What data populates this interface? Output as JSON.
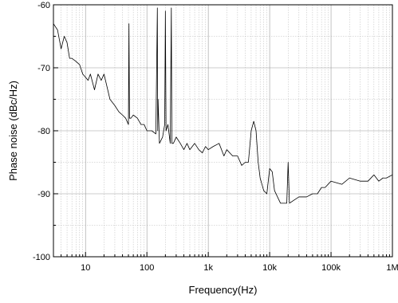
{
  "chart_data": {
    "type": "line",
    "title": "",
    "xlabel": "Frequency(Hz)",
    "ylabel": "Phase noise (dBc/Hz)",
    "x_scale": "log",
    "xlim": [
      3,
      1000000
    ],
    "ylim": [
      -100,
      -60
    ],
    "x_ticks": [
      {
        "value": 10,
        "label": "10"
      },
      {
        "value": 100,
        "label": "100"
      },
      {
        "value": 1000,
        "label": "1k"
      },
      {
        "value": 10000,
        "label": "10k"
      },
      {
        "value": 100000,
        "label": "100k"
      },
      {
        "value": 1000000,
        "label": "1M"
      }
    ],
    "y_ticks": [
      {
        "value": -60,
        "label": "-60"
      },
      {
        "value": -70,
        "label": "-70"
      },
      {
        "value": -80,
        "label": "-80"
      },
      {
        "value": -90,
        "label": "-90"
      },
      {
        "value": -100,
        "label": "-100"
      }
    ],
    "grid": true,
    "legend": "none",
    "line_color": "#000000",
    "series": [
      {
        "x": [
          3,
          3.5,
          4,
          4.5,
          5,
          5.5,
          6,
          7,
          8,
          9,
          10,
          11,
          12,
          14,
          16,
          18,
          20,
          25,
          30,
          35,
          40,
          45,
          50,
          51,
          52,
          55,
          60,
          70,
          80,
          90,
          100,
          110,
          120,
          140,
          148,
          150,
          152,
          160,
          180,
          195,
          200,
          205,
          220,
          240,
          250,
          255,
          270,
          300,
          350,
          400,
          450,
          500,
          600,
          700,
          800,
          900,
          1000,
          1200,
          1500,
          1800,
          2000,
          2500,
          3000,
          3500,
          4000,
          4500,
          5000,
          5500,
          6000,
          6500,
          7000,
          8000,
          9000,
          10000,
          11000,
          12000,
          15000,
          19000,
          20000,
          21000,
          25000,
          30000,
          40000,
          50000,
          60000,
          70000,
          80000,
          100000,
          150000,
          200000,
          300000,
          400000,
          500000,
          600000,
          700000,
          800000,
          1000000
        ],
        "y": [
          -63,
          -64,
          -67,
          -65,
          -66,
          -68.5,
          -68.5,
          -69,
          -69.5,
          -71,
          -71.5,
          -72,
          -71,
          -73.5,
          -71,
          -72,
          -71,
          -75,
          -76,
          -77,
          -77.5,
          -78,
          -79,
          -63,
          -78,
          -78,
          -77.5,
          -78,
          -79,
          -79,
          -80,
          -80,
          -80,
          -80.5,
          -60.5,
          -80,
          -75,
          -82,
          -81,
          -79,
          -61,
          -80,
          -79,
          -82,
          -60.5,
          -82,
          -82,
          -81,
          -82,
          -83,
          -82,
          -83,
          -82,
          -83,
          -83.5,
          -82.5,
          -83,
          -82.5,
          -82,
          -84,
          -83,
          -84,
          -84,
          -85.5,
          -85,
          -85,
          -80,
          -78.5,
          -80,
          -85,
          -87.5,
          -89.5,
          -90,
          -86,
          -86.5,
          -89.5,
          -91.5,
          -91.5,
          -85,
          -91.5,
          -91,
          -90.5,
          -90.5,
          -90,
          -90,
          -89,
          -89,
          -88,
          -88.5,
          -87.5,
          -88,
          -88,
          -87,
          -88,
          -87.5,
          -87.5,
          -87
        ]
      }
    ]
  }
}
